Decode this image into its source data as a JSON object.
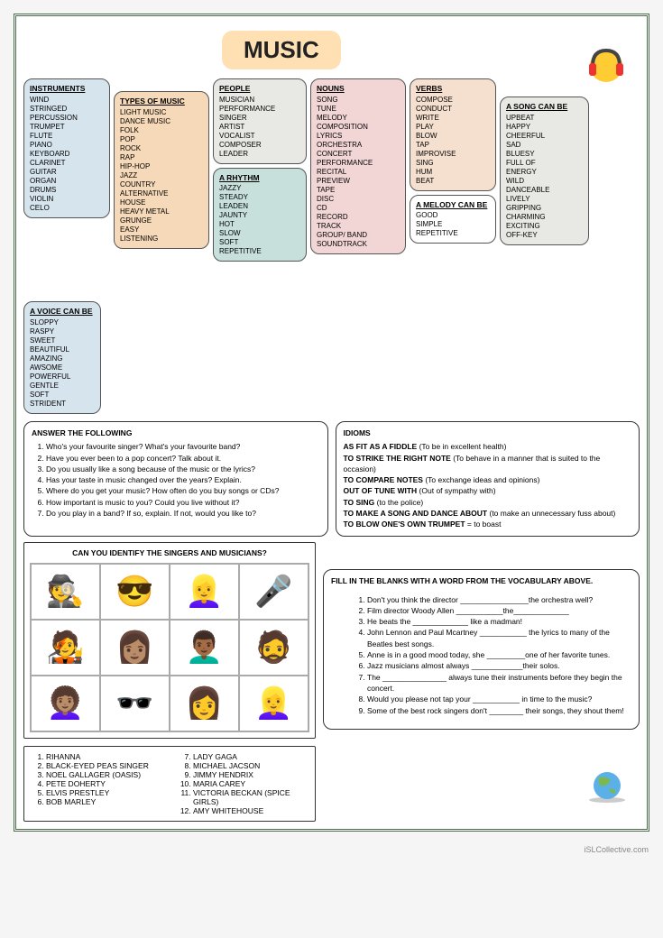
{
  "title": "MUSIC",
  "footer_text": "iSLCollective.com",
  "vocab": {
    "instruments": {
      "heading": "INSTRUMENTS",
      "items": [
        "WIND",
        "STRINGED",
        "PERCUSSION",
        "TRUMPET",
        "FLUTE",
        "PIANO",
        "KEYBOARD",
        "CLARINET",
        "GUITAR",
        "ORGAN",
        "DRUMS",
        "VIOLIN",
        "CELO"
      ]
    },
    "types": {
      "heading": "TYPES OF MUSIC",
      "items": [
        "LIGHT MUSIC",
        "DANCE MUSIC",
        "FOLK",
        "POP",
        "ROCK",
        "RAP",
        "HIP-HOP",
        "JAZZ",
        "COUNTRY",
        "ALTERNATIVE",
        "HOUSE",
        "HEAVY METAL",
        "GRUNGE",
        "EASY",
        "LISTENING"
      ]
    },
    "people": {
      "heading": "PEOPLE",
      "items": [
        "MUSICIAN",
        "PERFORMANCE",
        "SINGER",
        "ARTIST",
        "VOCALIST",
        "COMPOSER",
        "LEADER"
      ]
    },
    "rhythm": {
      "heading": "A RHYTHM",
      "items": [
        "JAZZY",
        "STEADY",
        "LEADEN",
        "JAUNTY",
        "HOT",
        "SLOW",
        "SOFT",
        "REPETITIVE"
      ]
    },
    "nouns": {
      "heading": "NOUNS",
      "items": [
        "SONG",
        "TUNE",
        "MELODY",
        "COMPOSITION",
        "LYRICS",
        "ORCHESTRA",
        "CONCERT",
        "PERFORMANCE",
        "RECITAL",
        "PREVIEW",
        "TAPE",
        "DISC",
        "CD",
        "RECORD",
        "TRACK",
        "GROUP/ BAND",
        "SOUNDTRACK"
      ]
    },
    "verbs": {
      "heading": "VERBS",
      "items": [
        "COMPOSE",
        "CONDUCT",
        "WRITE",
        "PLAY",
        "BLOW",
        "TAP",
        "IMPROVISE",
        "SING",
        "HUM",
        "BEAT"
      ]
    },
    "melody": {
      "heading": "A MELODY CAN BE",
      "items": [
        "GOOD",
        "SIMPLE",
        "REPETITIVE"
      ]
    },
    "song": {
      "heading": "A SONG CAN BE",
      "items": [
        "UPBEAT",
        "HAPPY",
        "CHEERFUL",
        "SAD",
        "BLUESY",
        "FULL OF",
        "ENERGY",
        "WILD",
        "DANCEABLE",
        "LIVELY",
        "GRIPPING",
        "CHARMING",
        "EXCITING",
        "OFF-KEY"
      ]
    },
    "voice": {
      "heading": "A VOICE CAN BE",
      "items": [
        "SLOPPY",
        "RASPY",
        "SWEET",
        "BEAUTIFUL",
        "AMAZING",
        "AWSOME",
        "POWERFUL",
        "GENTLE",
        "SOFT",
        "STRIDENT"
      ]
    }
  },
  "questions": {
    "heading": "ANSWER THE FOLLOWING",
    "items": [
      "Who's your favourite singer? What's your favourite band?",
      "Have you ever been to a pop concert? Talk about it.",
      "Do you usually like a song because of the music or the lyrics?",
      "Has your taste in music changed over the years? Explain.",
      "Where do you get your music? How often do you buy songs or CDs?",
      "How important is music to you? Could you live without it?",
      "Do you play in a band? If so, explain. If not, would you like to?"
    ]
  },
  "idioms": {
    "heading": "IDIOMS",
    "items": [
      {
        "term": "AS FIT AS A FIDDLE",
        "def": "(To be in excellent health)"
      },
      {
        "term": "TO STRIKE THE RIGHT NOTE",
        "def": "(To behave in a manner that is suited to the occasion)"
      },
      {
        "term": "TO COMPARE NOTES",
        "def": "(To exchange ideas and opinions)"
      },
      {
        "term": "OUT OF TUNE WITH",
        "def": "(Out of sympathy with)"
      },
      {
        "term": "TO SING",
        "def": "(to the police)"
      },
      {
        "term": "TO MAKE A SONG AND DANCE ABOUT",
        "def": "(to make an unnecessary fuss about)"
      },
      {
        "term": "TO BLOW ONE'S OWN TRUMPET",
        "def": "= to boast"
      }
    ]
  },
  "singers": {
    "heading": "CAN YOU IDENTIFY THE SINGERS AND MUSICIANS?",
    "emojis": [
      "🕵️",
      "😎",
      "👱‍♀️",
      "🎤",
      "🧑‍🎤",
      "👩🏽",
      "👨🏾‍🦱",
      "🧔",
      "👩🏽‍🦱",
      "🕶️",
      "👩",
      "👱‍♀️"
    ]
  },
  "fill": {
    "heading": "FILL IN THE BLANKS WITH A WORD FROM THE VOCABULARY ABOVE.",
    "items": [
      "Don't you think the director ________________the orchestra well?",
      "Film director Woody Allen ___________the_____________",
      "He beats the _____________ like a madman!",
      "John Lennon and Paul Mcartney ___________ the lyrics to many of the Beatles best songs.",
      "Anne is in a good mood today, she _________one of her favorite tunes.",
      "Jazz musicians almost always ____________their solos.",
      "The _______________ always tune their instruments before they begin the concert.",
      "Would you please not tap your ___________ in time to the music?",
      "Some of the best rock singers don't ________ their songs, they shout them!"
    ]
  },
  "names": {
    "col1": [
      "RIHANNA",
      "BLACK-EYED PEAS SINGER",
      "NOEL GALLAGER (OASIS)",
      "PETE DOHERTY",
      "ELVIS PRESTLEY",
      "BOB MARLEY"
    ],
    "col2": [
      "LADY GAGA",
      "MICHAEL JACSON",
      "JIMMY HENDRIX",
      "MARIA CAREY",
      "VICTORIA BECKAN (SPICE GIRLS)",
      "AMY WHITEHOUSE"
    ]
  },
  "colors": {
    "blue": "#d6e4ee",
    "orange": "#f5d9b8",
    "grey": "#e8e8e4",
    "teal": "#c8e0dc",
    "pink": "#f2d6d6",
    "peach": "#f5e0d0",
    "border": "#4a6b4a",
    "title_bg": "#ffe0b3"
  }
}
